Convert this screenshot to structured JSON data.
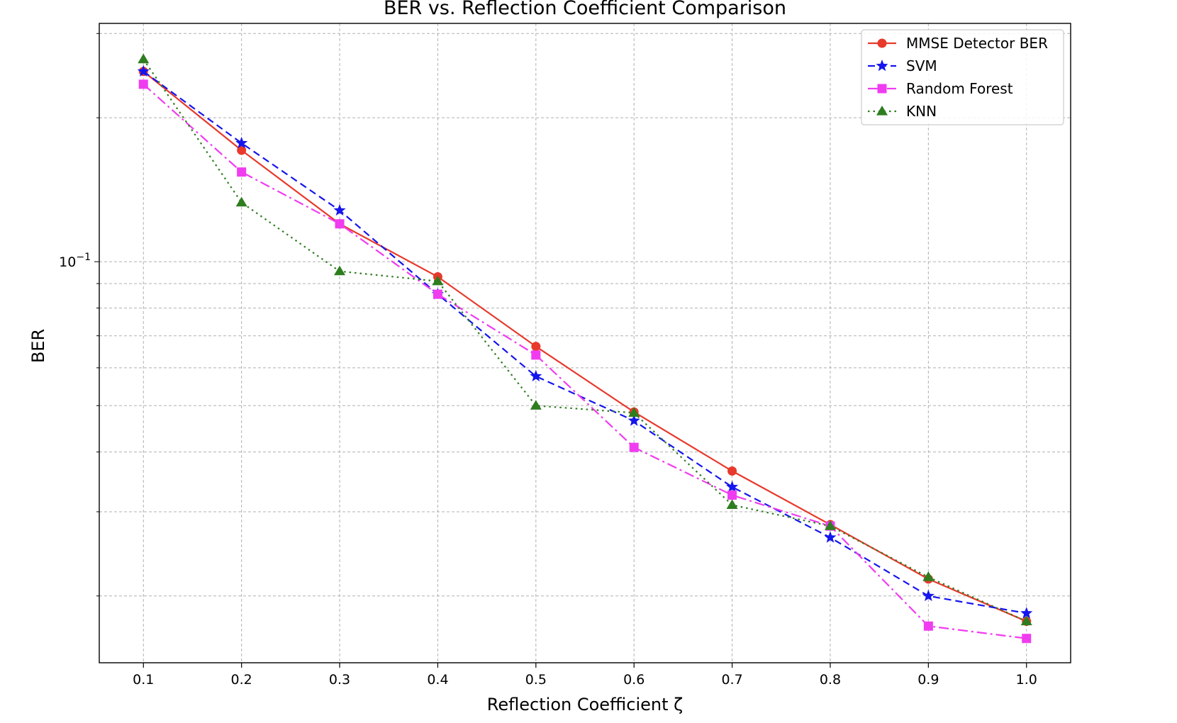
{
  "chart_data": {
    "type": "line",
    "title": "BER vs. Reflection Coefficient Comparison",
    "xlabel": "Reflection Coefficient ζ",
    "ylabel": "BER",
    "yscale": "log",
    "xlim": [
      0.055,
      1.045
    ],
    "ylim": [
      0.0145,
      0.315
    ],
    "x_ticks": [
      "0.1",
      "0.2",
      "0.3",
      "0.4",
      "0.5",
      "0.6",
      "0.7",
      "0.8",
      "0.9",
      "1.0"
    ],
    "y_major_ticks": [
      {
        "value": 0.1,
        "base": "10",
        "exp": "−1"
      }
    ],
    "grid": true,
    "legend_position": "top-right",
    "x": [
      0.1,
      0.2,
      0.3,
      0.4,
      0.5,
      0.6,
      0.7,
      0.8,
      0.9,
      1.0
    ],
    "series": [
      {
        "name": "MMSE Detector BER",
        "color": "#e8392b",
        "line": "solid",
        "marker": "circle",
        "values": [
          0.25,
          0.171,
          0.12,
          0.093,
          0.0665,
          0.0485,
          0.0365,
          0.0282,
          0.0217,
          0.0177
        ]
      },
      {
        "name": "SVM",
        "color": "#1515ee",
        "line": "dashed",
        "marker": "star",
        "values": [
          0.25,
          0.177,
          0.128,
          0.0855,
          0.0576,
          0.0465,
          0.0338,
          0.0265,
          0.02,
          0.0184
        ]
      },
      {
        "name": "Random Forest",
        "color": "#f03cf0",
        "line": "dashdot",
        "marker": "square",
        "values": [
          0.235,
          0.154,
          0.12,
          0.0855,
          0.0638,
          0.0409,
          0.0325,
          0.028,
          0.0173,
          0.0163
        ]
      },
      {
        "name": "KNN",
        "color": "#2e7d1f",
        "line": "dotted",
        "marker": "triangle",
        "values": [
          0.265,
          0.133,
          0.0955,
          0.091,
          0.05,
          0.0483,
          0.031,
          0.028,
          0.0219,
          0.0177
        ]
      }
    ]
  }
}
